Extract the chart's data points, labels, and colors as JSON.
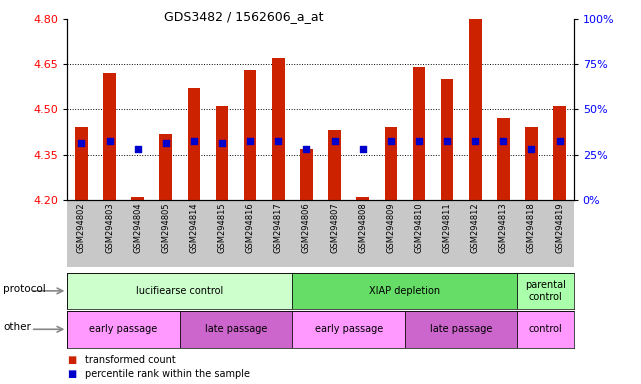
{
  "title": "GDS3482 / 1562606_a_at",
  "samples": [
    "GSM294802",
    "GSM294803",
    "GSM294804",
    "GSM294805",
    "GSM294814",
    "GSM294815",
    "GSM294816",
    "GSM294817",
    "GSM294806",
    "GSM294807",
    "GSM294808",
    "GSM294809",
    "GSM294810",
    "GSM294811",
    "GSM294812",
    "GSM294813",
    "GSM294818",
    "GSM294819"
  ],
  "bar_tops": [
    4.44,
    4.62,
    4.21,
    4.42,
    4.57,
    4.51,
    4.63,
    4.67,
    4.37,
    4.43,
    4.21,
    4.44,
    4.64,
    4.6,
    4.8,
    4.47,
    4.44,
    4.51
  ],
  "blue_vals": [
    4.39,
    4.395,
    4.37,
    4.39,
    4.395,
    4.39,
    4.395,
    4.395,
    4.37,
    4.395,
    4.37,
    4.395,
    4.395,
    4.395,
    4.395,
    4.395,
    4.37,
    4.395
  ],
  "bar_base": 4.2,
  "ylim_left": [
    4.2,
    4.8
  ],
  "ylim_right": [
    0,
    100
  ],
  "yticks_left": [
    4.2,
    4.35,
    4.5,
    4.65,
    4.8
  ],
  "yticks_right": [
    0,
    25,
    50,
    75,
    100
  ],
  "dotted_lines": [
    4.35,
    4.5,
    4.65
  ],
  "bar_color": "#cc2200",
  "blue_color": "#0000cc",
  "tick_bg_color": "#c8c8c8",
  "protocol_groups": [
    {
      "label": "lucifiearse control",
      "label_display": "lucifiearse control",
      "start": 0,
      "end": 7,
      "color": "#ccffcc"
    },
    {
      "label": "XIAP depletion",
      "label_display": "XIAP depletion",
      "start": 8,
      "end": 15,
      "color": "#66dd66"
    },
    {
      "label": "parental\ncontrol",
      "label_display": "parental\ncontrol",
      "start": 16,
      "end": 17,
      "color": "#aaffaa"
    }
  ],
  "other_groups": [
    {
      "label": "early passage",
      "start": 0,
      "end": 3,
      "color": "#ff99ff"
    },
    {
      "label": "late passage",
      "start": 4,
      "end": 7,
      "color": "#cc66cc"
    },
    {
      "label": "early passage",
      "start": 8,
      "end": 11,
      "color": "#ff99ff"
    },
    {
      "label": "late passage",
      "start": 12,
      "end": 15,
      "color": "#cc66cc"
    },
    {
      "label": "control",
      "start": 16,
      "end": 17,
      "color": "#ff99ff"
    }
  ],
  "legend_items": [
    {
      "label": "transformed count",
      "color": "#cc2200"
    },
    {
      "label": "percentile rank within the sample",
      "color": "#0000cc"
    }
  ],
  "fig_width": 6.41,
  "fig_height": 3.84,
  "dpi": 100
}
